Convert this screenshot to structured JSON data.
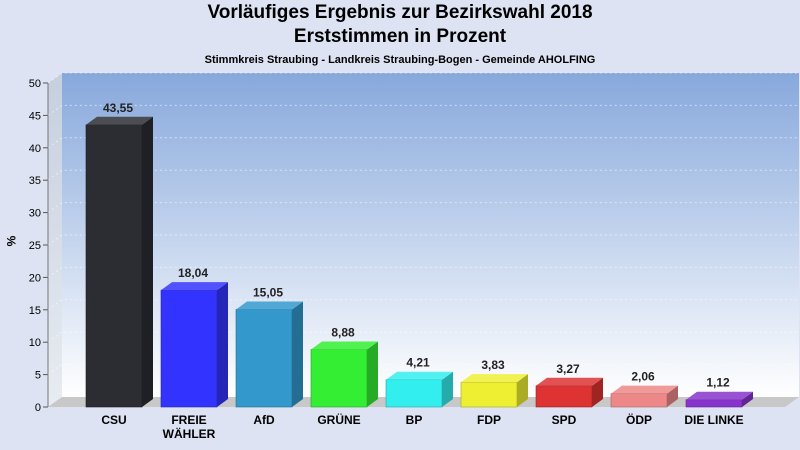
{
  "title": "Vorläufiges Ergebnis zur Bezirkswahl 2018",
  "title2": "Erststimmen in Prozent",
  "subtitle": "Stimmkreis Straubing - Landkreis Straubing-Bogen - Gemeinde AHOLFING",
  "chart_data": {
    "type": "bar",
    "title": "Vorläufiges Ergebnis zur Bezirkswahl 2018",
    "subtitle": "Erststimmen in Prozent",
    "xlabel": "",
    "ylabel": "%",
    "ylim": [
      0,
      50
    ],
    "yticks": [
      0,
      5,
      10,
      15,
      20,
      25,
      30,
      35,
      40,
      45,
      50
    ],
    "grid": true,
    "categories": [
      "CSU",
      "FREIE WÄHLER",
      "AfD",
      "GRÜNE",
      "BP",
      "FDP",
      "SPD",
      "ÖDP",
      "DIE LINKE"
    ],
    "category_lines": [
      [
        "CSU"
      ],
      [
        "FREIE",
        "WÄHLER"
      ],
      [
        "AfD"
      ],
      [
        "GRÜNE"
      ],
      [
        "BP"
      ],
      [
        "FDP"
      ],
      [
        "SPD"
      ],
      [
        "ÖDP"
      ],
      [
        "DIE LINKE"
      ]
    ],
    "values": [
      43.55,
      18.04,
      15.05,
      8.88,
      4.21,
      3.83,
      3.27,
      2.06,
      1.12
    ],
    "value_labels": [
      "43,55",
      "18,04",
      "15,05",
      "8,88",
      "4,21",
      "3,83",
      "3,27",
      "2,06",
      "1,12"
    ],
    "colors": [
      "#2b2d33",
      "#3333ff",
      "#3399cc",
      "#33ee33",
      "#33eeee",
      "#eeee33",
      "#dd3333",
      "#ee8888",
      "#8833cc"
    ]
  }
}
